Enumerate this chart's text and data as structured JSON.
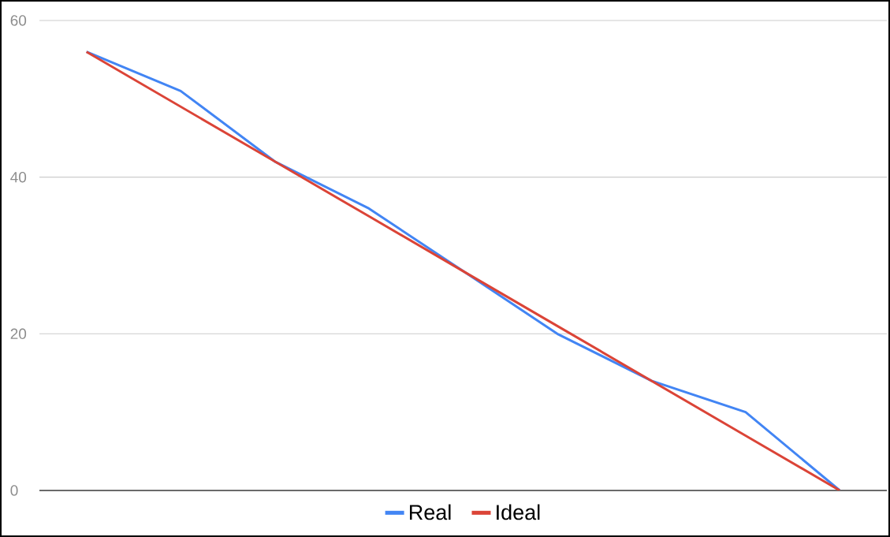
{
  "chart_data": {
    "type": "line",
    "categories": [
      null,
      null,
      null,
      null,
      null,
      null,
      null,
      null,
      null
    ],
    "series": [
      {
        "name": "Real",
        "color": "#4285f4",
        "values": [
          56,
          51,
          42,
          36,
          28,
          20,
          14,
          10,
          0
        ]
      },
      {
        "name": "Ideal",
        "color": "#db4437",
        "values": [
          56,
          49,
          42,
          35,
          28,
          21,
          14,
          7,
          0
        ]
      }
    ],
    "ylim": [
      0,
      60
    ],
    "yticks": [
      0,
      20,
      40,
      60
    ],
    "grid": "y",
    "legend": "bottom",
    "tick_labels": "y",
    "marker": "none",
    "line_style": "solid"
  }
}
